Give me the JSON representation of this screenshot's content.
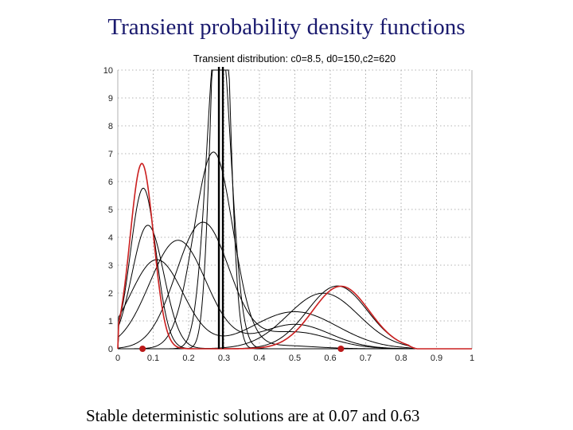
{
  "slide": {
    "title": "Transient probability density functions",
    "caption": "Stable deterministic solutions are at 0.07 and 0.63"
  },
  "chart_data": {
    "type": "line",
    "title": "Transient distribution: c0=8.5, d0=150,c2=620",
    "xlabel": "",
    "ylabel": "",
    "xlim": [
      0,
      1
    ],
    "ylim": [
      0,
      10
    ],
    "x_ticks": [
      "0",
      "0.1",
      "0.2",
      "0.3",
      "0.4",
      "0.5",
      "0.6",
      "0.7",
      "0.8",
      "0.9",
      "1"
    ],
    "y_ticks": [
      "0",
      "1",
      "2",
      "3",
      "4",
      "5",
      "6",
      "7",
      "8",
      "9",
      "10"
    ],
    "grid": true,
    "colors": {
      "curves": "#000000",
      "stationary": "#cc2020",
      "points": "#bb1a1a"
    },
    "initial_condition_x": 0.29,
    "stable_points": [
      {
        "x": 0.07,
        "y": 0
      },
      {
        "x": 0.63,
        "y": 0
      }
    ],
    "series": [
      {
        "color": "#000000",
        "components": [
          {
            "w": 1.0,
            "mu": 0.29,
            "sigma": 0.024
          }
        ]
      },
      {
        "color": "#000000",
        "components": [
          {
            "w": 1.0,
            "mu": 0.285,
            "sigma": 0.033
          }
        ]
      },
      {
        "color": "#000000",
        "components": [
          {
            "w": 0.97,
            "mu": 0.27,
            "sigma": 0.055
          },
          {
            "w": 0.03,
            "mu": 0.45,
            "sigma": 0.1
          }
        ]
      },
      {
        "color": "#000000",
        "components": [
          {
            "w": 0.85,
            "mu": 0.24,
            "sigma": 0.075
          },
          {
            "w": 0.15,
            "mu": 0.5,
            "sigma": 0.1
          }
        ]
      },
      {
        "color": "#000000",
        "components": [
          {
            "w": 0.78,
            "mu": 0.17,
            "sigma": 0.08
          },
          {
            "w": 0.22,
            "mu": 0.5,
            "sigma": 0.1
          }
        ]
      },
      {
        "color": "#000000",
        "components": [
          {
            "w": 0.6,
            "mu": 0.11,
            "sigma": 0.075
          },
          {
            "w": 0.4,
            "mu": 0.5,
            "sigma": 0.12
          }
        ]
      },
      {
        "color": "#000000",
        "components": [
          {
            "w": 0.5,
            "mu": 0.085,
            "sigma": 0.045
          },
          {
            "w": 0.5,
            "mu": 0.58,
            "sigma": 0.1
          }
        ]
      },
      {
        "color": "#000000",
        "components": [
          {
            "w": 0.52,
            "mu": 0.072,
            "sigma": 0.036
          },
          {
            "w": 0.48,
            "mu": 0.62,
            "sigma": 0.085
          }
        ]
      },
      {
        "color": "#000000",
        "components": [
          {
            "w": 0.55,
            "mu": 0.068,
            "sigma": 0.033
          },
          {
            "w": 0.45,
            "mu": 0.63,
            "sigma": 0.08
          }
        ]
      },
      {
        "color": "#cc2020",
        "components": [
          {
            "w": 0.55,
            "mu": 0.068,
            "sigma": 0.033
          },
          {
            "w": 0.45,
            "mu": 0.63,
            "sigma": 0.08
          }
        ]
      }
    ]
  }
}
